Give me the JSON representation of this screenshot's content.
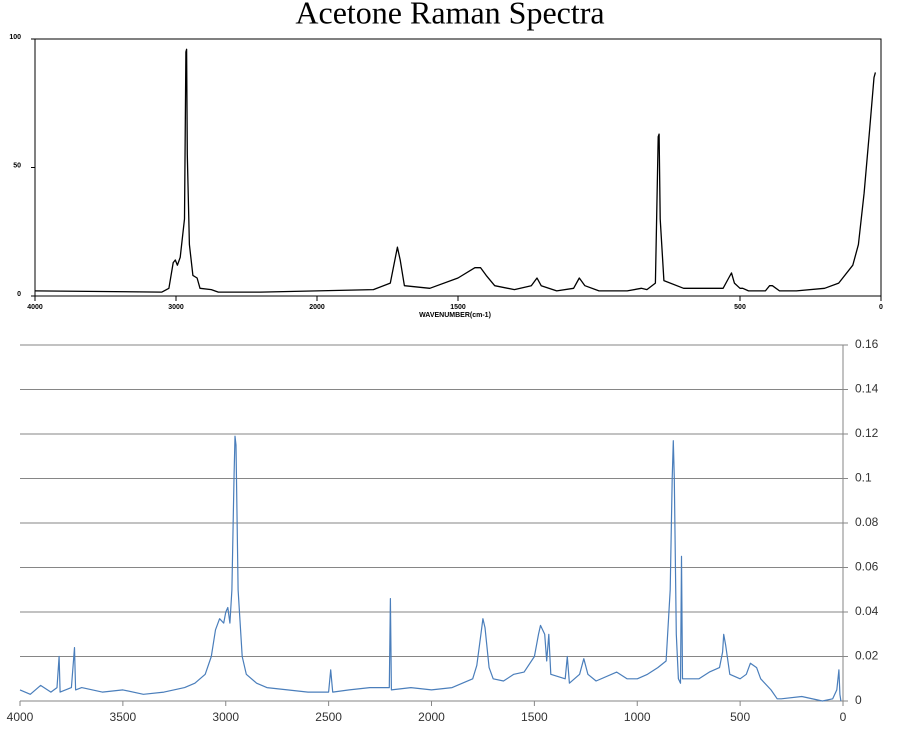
{
  "chart_data": [
    {
      "type": "line",
      "title": "Acetone Raman Spectra",
      "x_label": "WAVENUMBER(cm-1)",
      "xlim": [
        4000,
        0
      ],
      "xbreak": 2000,
      "xticks": [
        4000,
        3000,
        2000,
        1500,
        500,
        0
      ],
      "ylim": [
        0,
        100
      ],
      "yticks": [
        0,
        50,
        100
      ],
      "grid": false,
      "yaxis_side": "left",
      "series": [
        {
          "color": "#000000",
          "x": [
            4000,
            3100,
            3050,
            3020,
            3005,
            2990,
            2970,
            2940,
            2930,
            2925,
            2920,
            2905,
            2880,
            2850,
            2830,
            2750,
            2700,
            2400,
            2000,
            1800,
            1740,
            1715,
            1705,
            1690,
            1600,
            1500,
            1440,
            1420,
            1400,
            1370,
            1300,
            1240,
            1220,
            1205,
            1150,
            1090,
            1070,
            1050,
            1000,
            900,
            850,
            830,
            800,
            790,
            787,
            783,
            770,
            700,
            560,
            540,
            530,
            520,
            500,
            490,
            470,
            410,
            395,
            385,
            360,
            300,
            200,
            150,
            100,
            80,
            60,
            40,
            25,
            20
          ],
          "values": [
            2,
            1.5,
            3,
            13,
            14,
            12,
            15,
            30,
            95,
            96,
            55,
            20,
            8,
            7,
            3,
            2.5,
            1.5,
            1.5,
            2,
            2.5,
            5,
            19,
            14,
            4,
            3,
            7,
            11,
            11,
            8,
            4,
            2.5,
            4,
            7,
            4,
            2,
            3,
            7,
            4,
            2,
            2,
            3,
            2.5,
            5,
            62,
            63,
            30,
            6,
            3,
            3,
            7,
            9,
            5,
            3,
            3,
            2,
            2,
            4,
            4,
            2,
            2,
            3,
            5,
            12,
            20,
            40,
            65,
            85,
            87
          ]
        }
      ]
    },
    {
      "type": "line",
      "xlim": [
        4000,
        0
      ],
      "xticks": [
        4000,
        3500,
        3000,
        2500,
        2000,
        1500,
        1000,
        500,
        0
      ],
      "ylim": [
        0,
        0.16
      ],
      "yticks": [
        0,
        0.02,
        0.04,
        0.06,
        0.08,
        0.1,
        0.12,
        0.14,
        0.16
      ],
      "grid": true,
      "yaxis_side": "right",
      "series": [
        {
          "color": "#4a7ebb",
          "x": [
            4000,
            3950,
            3900,
            3850,
            3820,
            3810,
            3805,
            3750,
            3735,
            3730,
            3700,
            3600,
            3500,
            3400,
            3300,
            3200,
            3150,
            3100,
            3070,
            3050,
            3030,
            3010,
            3000,
            2990,
            2980,
            2970,
            2960,
            2955,
            2950,
            2940,
            2920,
            2900,
            2850,
            2800,
            2700,
            2600,
            2500,
            2490,
            2480,
            2400,
            2300,
            2205,
            2200,
            2195,
            2100,
            2000,
            1900,
            1850,
            1800,
            1780,
            1760,
            1750,
            1740,
            1720,
            1700,
            1650,
            1600,
            1550,
            1500,
            1480,
            1470,
            1450,
            1440,
            1430,
            1420,
            1350,
            1340,
            1330,
            1280,
            1260,
            1240,
            1200,
            1100,
            1050,
            1000,
            950,
            900,
            860,
            840,
            830,
            825,
            820,
            810,
            800,
            790,
            785,
            780,
            750,
            700,
            650,
            600,
            585,
            580,
            570,
            550,
            500,
            470,
            450,
            420,
            400,
            350,
            320,
            300,
            200,
            100,
            50,
            30,
            20,
            15,
            10
          ],
          "values": [
            0.005,
            0.003,
            0.007,
            0.004,
            0.006,
            0.02,
            0.004,
            0.006,
            0.024,
            0.005,
            0.006,
            0.004,
            0.005,
            0.003,
            0.004,
            0.006,
            0.008,
            0.012,
            0.02,
            0.032,
            0.037,
            0.035,
            0.04,
            0.042,
            0.035,
            0.05,
            0.1,
            0.119,
            0.115,
            0.05,
            0.02,
            0.012,
            0.008,
            0.006,
            0.005,
            0.004,
            0.004,
            0.014,
            0.004,
            0.005,
            0.006,
            0.006,
            0.046,
            0.005,
            0.006,
            0.005,
            0.006,
            0.008,
            0.01,
            0.016,
            0.03,
            0.037,
            0.033,
            0.015,
            0.01,
            0.009,
            0.012,
            0.013,
            0.02,
            0.03,
            0.034,
            0.03,
            0.018,
            0.03,
            0.012,
            0.01,
            0.02,
            0.008,
            0.012,
            0.019,
            0.012,
            0.009,
            0.013,
            0.01,
            0.01,
            0.012,
            0.015,
            0.018,
            0.05,
            0.1,
            0.117,
            0.1,
            0.03,
            0.01,
            0.008,
            0.065,
            0.01,
            0.01,
            0.01,
            0.013,
            0.015,
            0.022,
            0.03,
            0.025,
            0.012,
            0.01,
            0.012,
            0.017,
            0.015,
            0.01,
            0.005,
            0.001,
            0.001,
            0.002,
            0,
            0.001,
            0.005,
            0.014,
            0.003,
            0
          ]
        }
      ]
    }
  ]
}
